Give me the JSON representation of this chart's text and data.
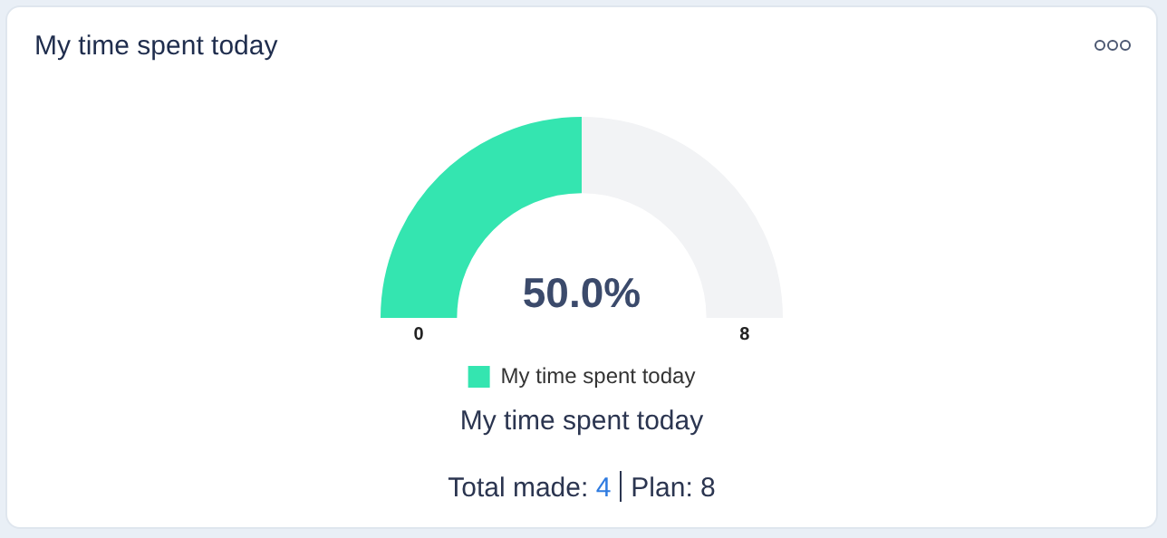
{
  "chart_data": {
    "type": "donut",
    "title": "My time spent today",
    "subtitle": "My time spent today",
    "categories": [
      "My time spent today",
      null
    ],
    "values": [
      50,
      50
    ],
    "colors": [
      "#34e5b0",
      "#f2f3f5"
    ],
    "legend": "bottom",
    "annotations": [
      "50.0%",
      "0",
      "8",
      "Total made:",
      "4",
      "Plan: 8"
    ]
  }
}
